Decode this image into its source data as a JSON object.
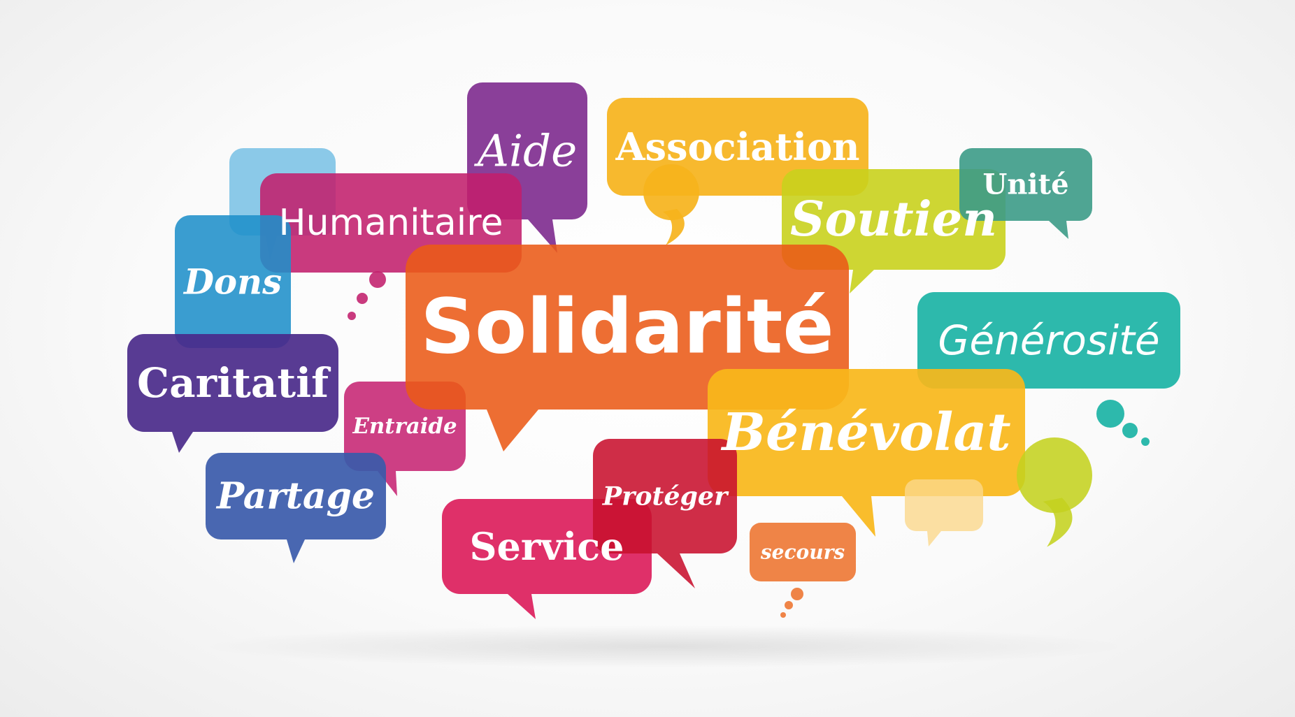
{
  "bubbles": [
    {
      "key": "cloud-light-blue",
      "label": "",
      "color": "#7ec3e6",
      "opacity": 0.9,
      "tail": "down"
    },
    {
      "key": "association",
      "label": "Association",
      "color": "#f6b31c",
      "opacity": 0.92,
      "tail": "comma",
      "font": "serif",
      "style": "normal",
      "weight": "bold"
    },
    {
      "key": "aide",
      "label": "Aide",
      "color": "#7d2a8e",
      "opacity": 0.9,
      "tail": "down",
      "font": "serif",
      "style": "italic",
      "weight": "normal"
    },
    {
      "key": "humanitaire",
      "label": "Humanitaire",
      "color": "#c21f6c",
      "opacity": 0.88,
      "tail": "dots",
      "font": "sans",
      "style": "normal",
      "weight": "normal"
    },
    {
      "key": "dons",
      "label": "Dons",
      "color": "#1f8fca",
      "opacity": 0.88,
      "tail": "none",
      "font": "serif",
      "style": "italic",
      "weight": "bold"
    },
    {
      "key": "soutien",
      "label": "Soutien",
      "color": "#c9d21d",
      "opacity": 0.9,
      "tail": "down",
      "font": "serif",
      "style": "italic",
      "weight": "bold"
    },
    {
      "key": "unite",
      "label": "Unité",
      "color": "#3c9b87",
      "opacity": 0.9,
      "tail": "down",
      "font": "serif",
      "style": "normal",
      "weight": "bold"
    },
    {
      "key": "generosite",
      "label": "Générosité",
      "color": "#1bb3a5",
      "opacity": 0.92,
      "tail": "dots",
      "font": "sans",
      "style": "italic",
      "weight": "normal"
    },
    {
      "key": "caritatif",
      "label": "Caritatif",
      "color": "#4a2a8a",
      "opacity": 0.92,
      "tail": "down",
      "font": "serif",
      "style": "normal",
      "weight": "bold"
    },
    {
      "key": "entraide",
      "label": "Entraide",
      "color": "#c82a77",
      "opacity": 0.9,
      "tail": "down",
      "font": "serif",
      "style": "italic",
      "weight": "bold"
    },
    {
      "key": "partage",
      "label": "Partage",
      "color": "#3a5aaa",
      "opacity": 0.92,
      "tail": "down",
      "font": "serif",
      "style": "italic",
      "weight": "bold"
    },
    {
      "key": "solidarite",
      "label": "Solidarité",
      "color": "#ea5a17",
      "opacity": 0.88,
      "tail": "down",
      "font": "sans",
      "style": "normal",
      "weight": "bold"
    },
    {
      "key": "benevolat",
      "label": "Bénévolat",
      "color": "#f8b71a",
      "opacity": 0.92,
      "tail": "down",
      "font": "serif",
      "style": "italic",
      "weight": "bold"
    },
    {
      "key": "cloud-lime",
      "label": "",
      "color": "#c4d21f",
      "opacity": 0.88,
      "tail": "comma"
    },
    {
      "key": "cloud-pale",
      "label": "",
      "color": "#fbd88c",
      "opacity": 0.8,
      "tail": "down"
    },
    {
      "key": "service",
      "label": "Service",
      "color": "#dc1e5c",
      "opacity": 0.92,
      "tail": "down",
      "font": "serif",
      "style": "normal",
      "weight": "bold"
    },
    {
      "key": "proteger",
      "label": "Protéger",
      "color": "#c8102e",
      "opacity": 0.88,
      "tail": "down",
      "font": "serif",
      "style": "italic",
      "weight": "bold"
    },
    {
      "key": "secours",
      "label": "secours",
      "color": "#ee7a37",
      "opacity": 0.92,
      "tail": "dots",
      "font": "serif",
      "style": "italic",
      "weight": "bold"
    }
  ]
}
